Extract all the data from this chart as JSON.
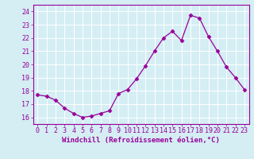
{
  "x": [
    0,
    1,
    2,
    3,
    4,
    5,
    6,
    7,
    8,
    9,
    10,
    11,
    12,
    13,
    14,
    15,
    16,
    17,
    18,
    19,
    20,
    21,
    22,
    23
  ],
  "y": [
    17.7,
    17.6,
    17.3,
    16.7,
    16.3,
    16.0,
    16.1,
    16.3,
    16.5,
    17.8,
    18.1,
    18.9,
    19.9,
    21.0,
    22.0,
    22.5,
    21.8,
    23.7,
    23.5,
    22.1,
    21.0,
    19.8,
    19.0,
    18.1
  ],
  "line_color": "#990099",
  "marker": "D",
  "markersize": 2.5,
  "linewidth": 0.9,
  "xlabel": "Windchill (Refroidissement éolien,°C)",
  "ylim": [
    15.5,
    24.5
  ],
  "xlim": [
    -0.5,
    23.5
  ],
  "yticks": [
    16,
    17,
    18,
    19,
    20,
    21,
    22,
    23,
    24
  ],
  "xticks": [
    0,
    1,
    2,
    3,
    4,
    5,
    6,
    7,
    8,
    9,
    10,
    11,
    12,
    13,
    14,
    15,
    16,
    17,
    18,
    19,
    20,
    21,
    22,
    23
  ],
  "bg_color": "#d4eef4",
  "grid_color": "#ffffff",
  "tick_color": "#990099",
  "label_color": "#990099",
  "xlabel_fontsize": 6.5,
  "tick_fontsize": 6.0,
  "spine_color": "#990099"
}
